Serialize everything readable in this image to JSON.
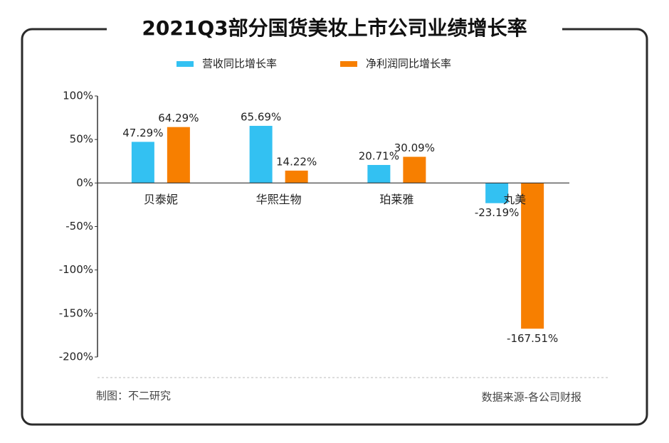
{
  "chart_data": {
    "type": "bar",
    "title": "2021Q3部分国货美妆上市公司业绩增长率",
    "categories": [
      "贝泰妮",
      "华熙生物",
      "珀莱雅",
      "丸美"
    ],
    "series": [
      {
        "name": "营收同比增长率",
        "color": "#33c1f2",
        "values": [
          47.29,
          65.69,
          20.71,
          -23.19
        ],
        "value_labels": [
          "47.29%",
          "65.69%",
          "20.71%",
          "-23.19%"
        ]
      },
      {
        "name": "净利润同比增长率",
        "color": "#f77f00",
        "values": [
          64.29,
          14.22,
          30.09,
          -167.51
        ],
        "value_labels": [
          "64.29%",
          "14.22%",
          "30.09%",
          "-167.51%"
        ]
      }
    ],
    "ylim": [
      -200,
      100
    ],
    "yticks": [
      {
        "value": -200,
        "label": "-200%"
      },
      {
        "value": -150,
        "label": "-150%"
      },
      {
        "value": -100,
        "label": "-100%"
      },
      {
        "value": -50,
        "label": "-50%"
      },
      {
        "value": 0,
        "label": "0%"
      },
      {
        "value": 50,
        "label": "50%"
      },
      {
        "value": 100,
        "label": "100%"
      }
    ],
    "credit": "制图：不二研究",
    "source": "数据来源-各公司财报"
  }
}
